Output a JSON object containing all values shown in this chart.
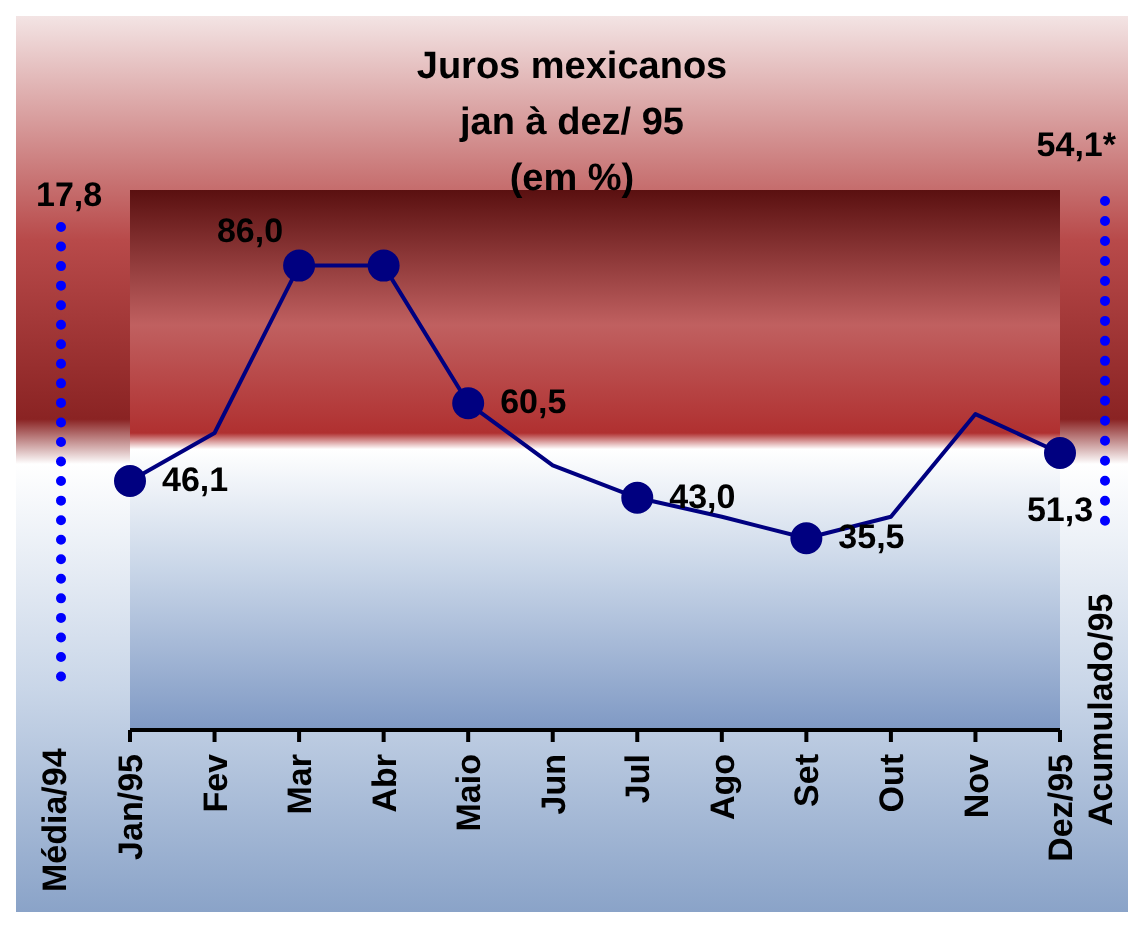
{
  "chart_data": {
    "type": "line",
    "title": "Juros mexicanos",
    "subtitle": "jan à dez/ 95",
    "ylabel": "(em %)",
    "categories": [
      "Jan/95",
      "Fev",
      "Mar",
      "Abr",
      "Maio",
      "Jun",
      "Jul",
      "Ago",
      "Set",
      "Out",
      "Nov",
      "Dez/95"
    ],
    "series": [
      {
        "color": "#000080",
        "marker": "none",
        "values": [
          46.1,
          55,
          86.0,
          86.0,
          60.5,
          49,
          43.0,
          39.5,
          35.5,
          39.5,
          58.5,
          51.3
        ]
      },
      {
        "type": "scatter",
        "color": "#000080",
        "marker": "circle",
        "values": [
          46.1,
          null,
          86.0,
          86.0,
          60.5,
          null,
          43.0,
          null,
          35.5,
          null,
          null,
          51.3
        ],
        "value_labels": [
          "46,1",
          null,
          "86,0",
          null,
          "60,5",
          null,
          "43,0",
          null,
          "35,5",
          null,
          null,
          "51,3"
        ]
      }
    ],
    "ylim": [
      0,
      100
    ],
    "tick_labels": "x",
    "annotations": [
      "17,8",
      "Média/94",
      "54,1*",
      "Acumulado/95"
    ]
  }
}
